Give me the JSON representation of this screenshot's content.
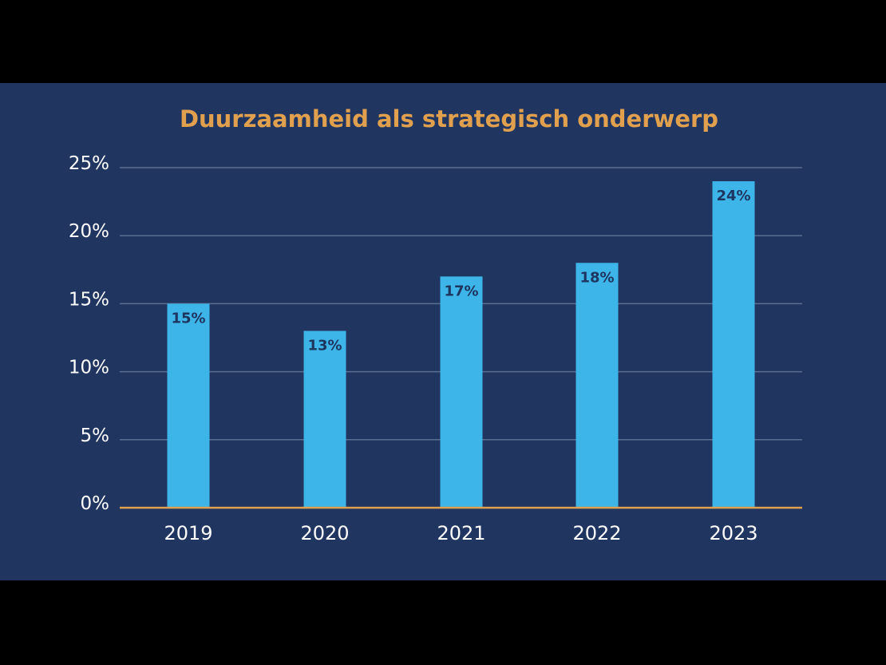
{
  "chart_data": {
    "type": "bar",
    "title": "Duurzaamheid als strategisch onderwerp",
    "categories": [
      "2019",
      "2020",
      "2021",
      "2022",
      "2023"
    ],
    "values": [
      15,
      13,
      17,
      18,
      24
    ],
    "data_labels": [
      "15%",
      "13%",
      "17%",
      "18%",
      "24%"
    ],
    "yticks": [
      "0%",
      "5%",
      "10%",
      "15%",
      "20%",
      "25%"
    ],
    "ylim": [
      0,
      25
    ],
    "xlabel": "",
    "ylabel": "",
    "grid": true,
    "colors": {
      "background": "#203560",
      "bar": "#3DB5E8",
      "title": "#E0A04E",
      "baseline": "#E0A04E",
      "grid": "#5A6E92",
      "data_label": "#1E3560"
    }
  }
}
